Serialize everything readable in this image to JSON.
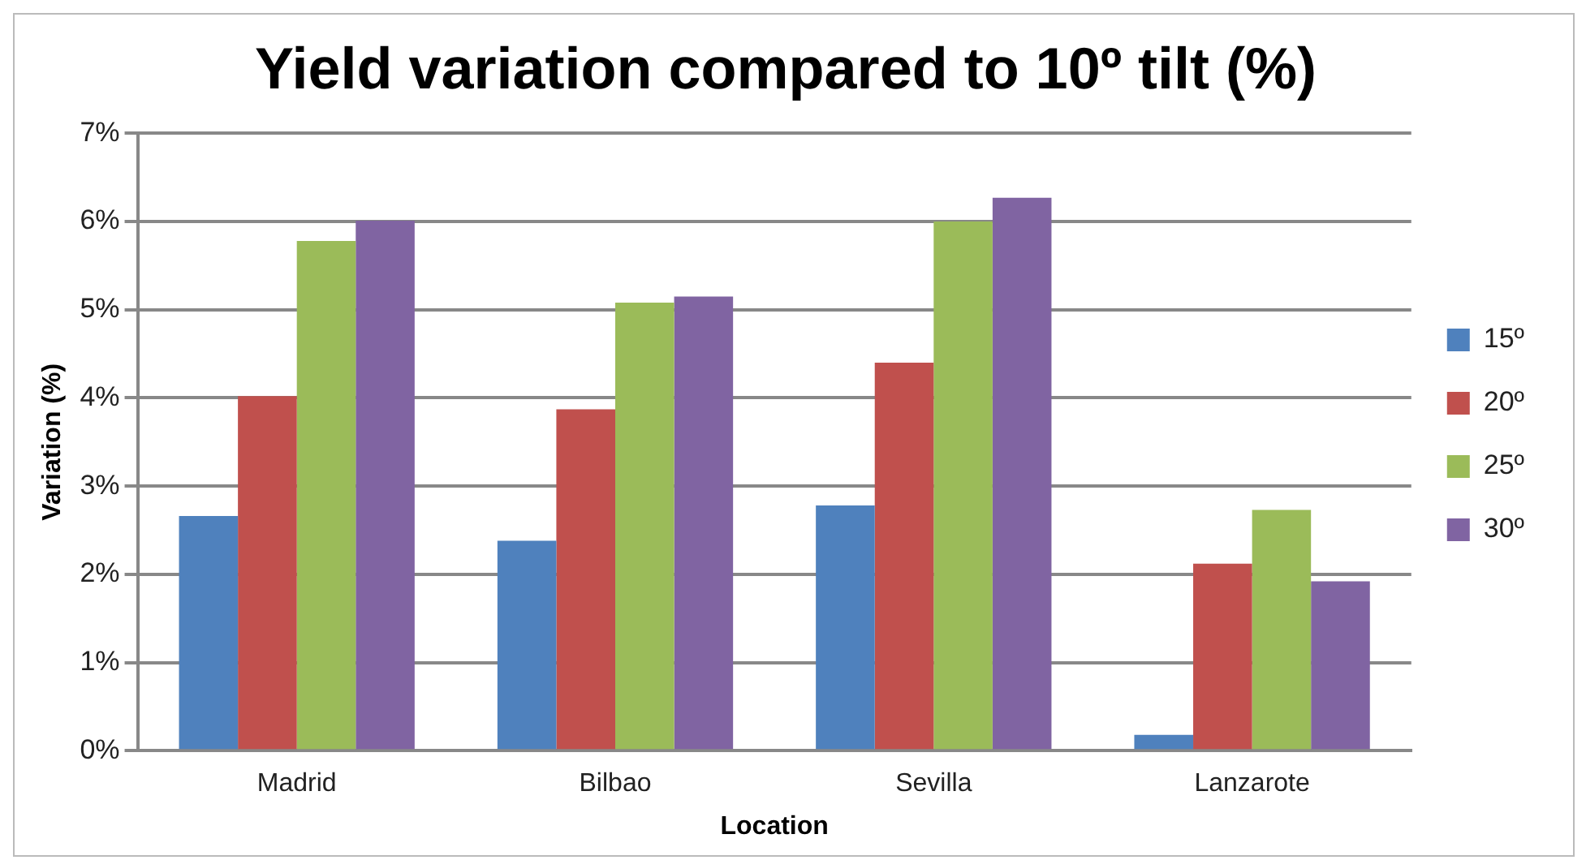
{
  "chart_data": {
    "type": "bar",
    "title": "Yield variation compared to 10º tilt (%)",
    "xlabel": "Location",
    "ylabel": "Variation (%)",
    "categories": [
      "Madrid",
      "Bilbao",
      "Sevilla",
      "Lanzarote"
    ],
    "series": [
      {
        "name": "15º",
        "color": "#4f81bd",
        "values": [
          2.66,
          2.38,
          2.78,
          0.18
        ]
      },
      {
        "name": "20º",
        "color": "#c0504d",
        "values": [
          4.02,
          3.87,
          4.4,
          2.12
        ]
      },
      {
        "name": "25º",
        "color": "#9bbb59",
        "values": [
          5.78,
          5.08,
          6.0,
          2.73
        ]
      },
      {
        "name": "30º",
        "color": "#8064a2",
        "values": [
          6.01,
          5.15,
          6.27,
          1.92
        ]
      }
    ],
    "ylim": [
      0,
      7
    ],
    "yticks": [
      {
        "value": 0,
        "label": "0%"
      },
      {
        "value": 1,
        "label": "1%"
      },
      {
        "value": 2,
        "label": "2%"
      },
      {
        "value": 3,
        "label": "3%"
      },
      {
        "value": 4,
        "label": "4%"
      },
      {
        "value": 5,
        "label": "5%"
      },
      {
        "value": 6,
        "label": "6%"
      },
      {
        "value": 7,
        "label": "7%"
      }
    ],
    "grid": "y",
    "legend": "right"
  }
}
